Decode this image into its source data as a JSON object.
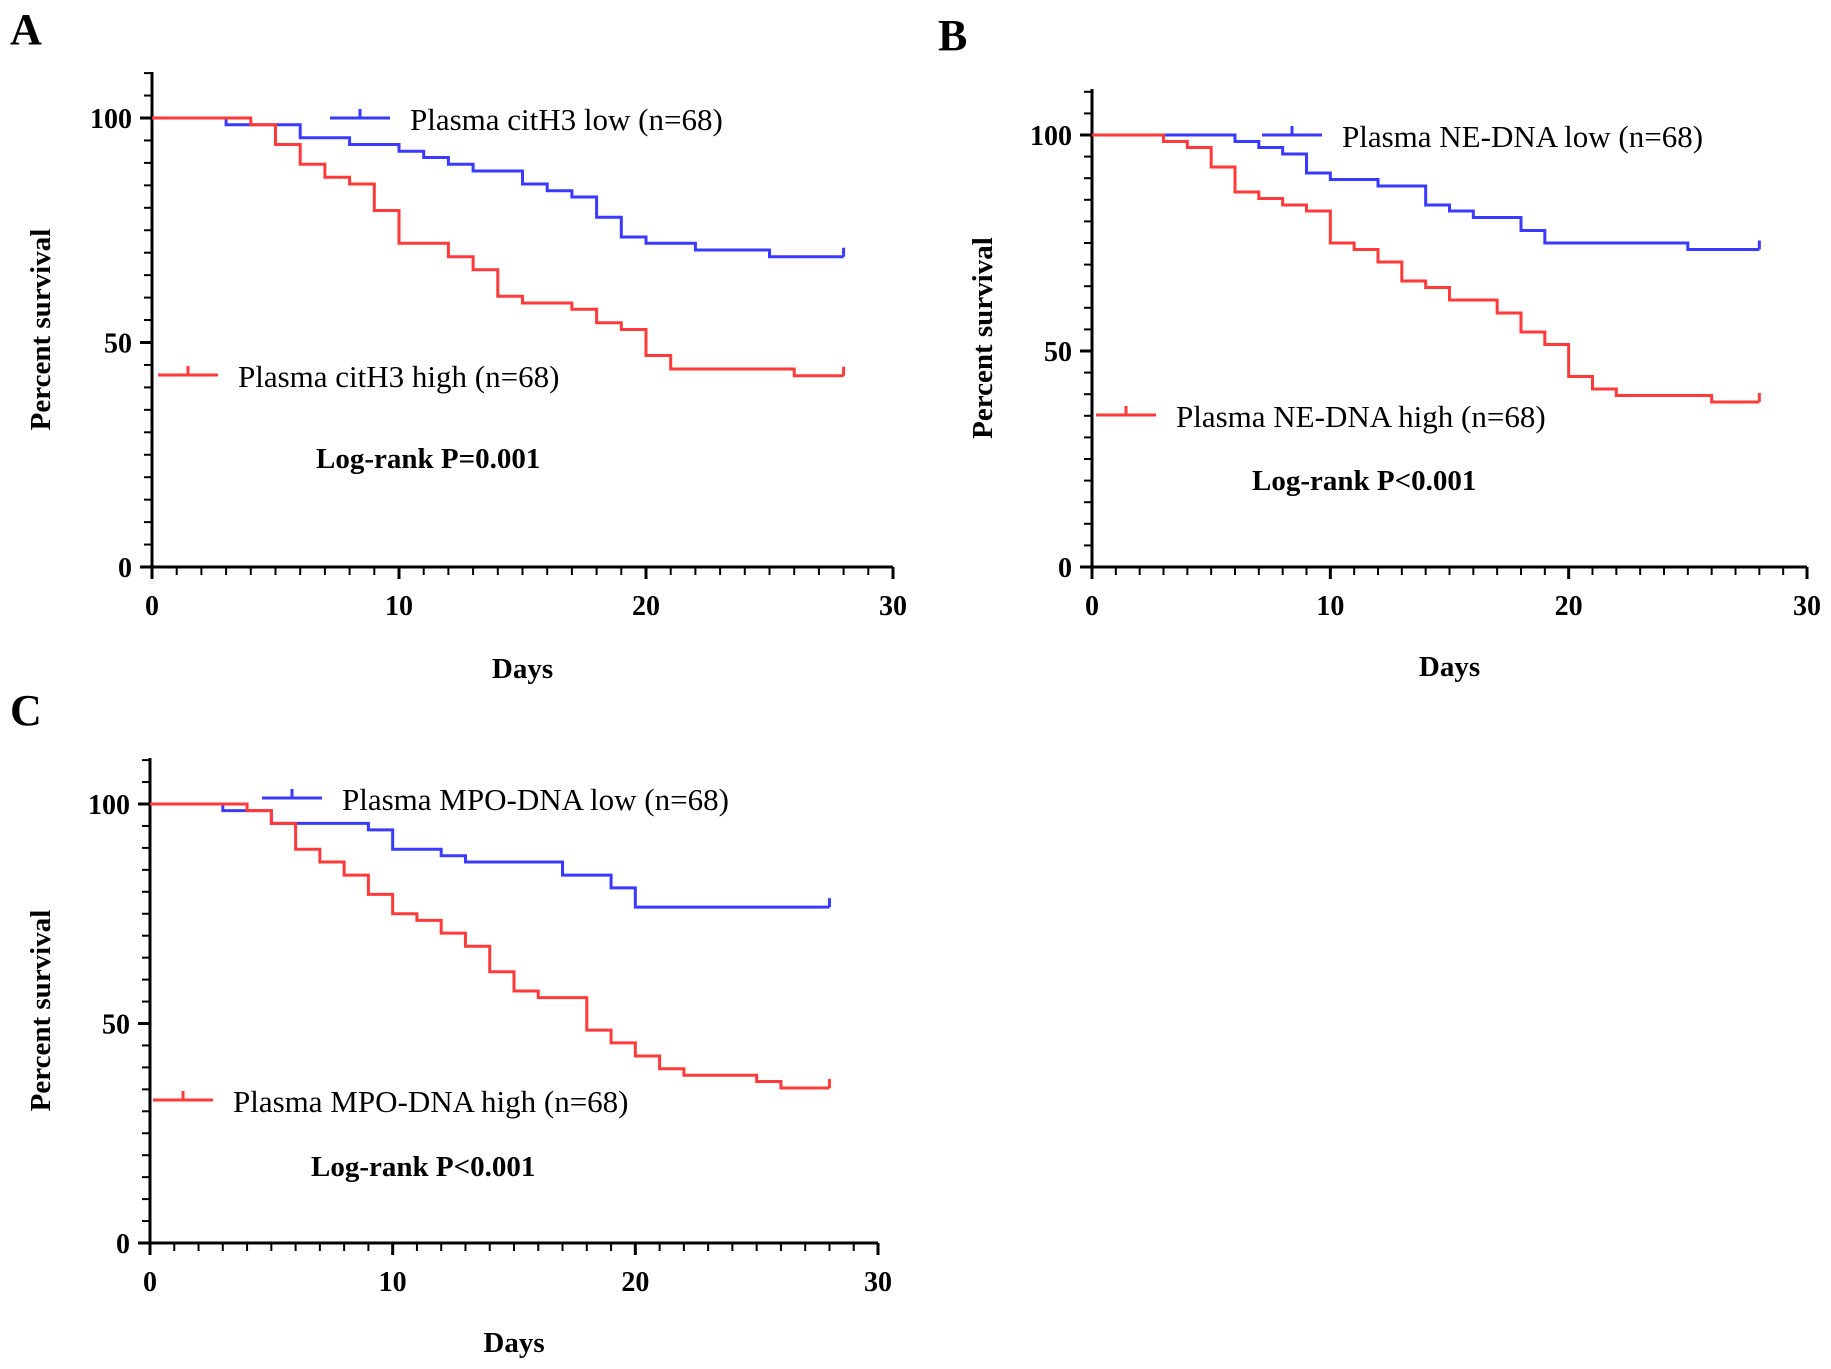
{
  "figure": {
    "panel_labels": [
      "A",
      "B",
      "C"
    ]
  },
  "colors": {
    "low": "#3a3aff",
    "high": "#ff3a3a",
    "axis": "#000000"
  },
  "chart_data": [
    {
      "type": "line",
      "subtype": "kaplan-meier",
      "panel": "A",
      "xlabel": "Days",
      "ylabel": "Percent survival",
      "xlim": [
        0,
        30
      ],
      "ylim": [
        0,
        110
      ],
      "xticks": [
        0,
        10,
        20,
        30
      ],
      "yticks": [
        0,
        50,
        100
      ],
      "annotation": "Log-rank P=0.001",
      "series": [
        {
          "name": "Plasma citH3 low (n=68)",
          "color": "#3a3aff",
          "x": [
            0,
            3,
            6,
            8,
            10,
            11,
            12,
            13,
            15,
            16,
            17,
            18,
            19,
            20,
            22,
            25,
            28
          ],
          "y": [
            100,
            98.5,
            95.6,
            94.1,
            92.6,
            91.2,
            89.7,
            88.2,
            85.3,
            83.8,
            82.4,
            77.9,
            73.5,
            72.1,
            70.6,
            69.1,
            69.1
          ]
        },
        {
          "name": "Plasma citH3 high (n=68)",
          "color": "#ff3a3a",
          "x": [
            0,
            4,
            5,
            6,
            7,
            8,
            9,
            10,
            12,
            13,
            14,
            15,
            17,
            18,
            19,
            20,
            21,
            26,
            28
          ],
          "y": [
            100,
            98.5,
            94.1,
            89.7,
            86.8,
            85.3,
            79.4,
            72.1,
            69.1,
            66.2,
            60.3,
            58.8,
            57.4,
            54.4,
            52.9,
            47.1,
            44.1,
            42.6,
            42.6
          ]
        }
      ]
    },
    {
      "type": "line",
      "subtype": "kaplan-meier",
      "panel": "B",
      "xlabel": "Days",
      "ylabel": "Percent survival",
      "xlim": [
        0,
        30
      ],
      "ylim": [
        0,
        110
      ],
      "xticks": [
        0,
        10,
        20,
        30
      ],
      "yticks": [
        0,
        50,
        100
      ],
      "annotation": "Log-rank P<0.001",
      "series": [
        {
          "name": "Plasma NE-DNA low (n=68)",
          "color": "#3a3aff",
          "x": [
            0,
            6,
            7,
            8,
            9,
            10,
            12,
            14,
            15,
            16,
            18,
            19,
            25,
            28
          ],
          "y": [
            100,
            98.5,
            97.1,
            95.6,
            91.2,
            89.7,
            88.2,
            83.8,
            82.4,
            80.9,
            77.9,
            75,
            73.5,
            73.5
          ]
        },
        {
          "name": "Plasma NE-DNA high (n=68)",
          "color": "#ff3a3a",
          "x": [
            0,
            3,
            4,
            5,
            6,
            7,
            8,
            9,
            10,
            11,
            12,
            13,
            14,
            15,
            17,
            18,
            19,
            20,
            21,
            22,
            26,
            28
          ],
          "y": [
            100,
            98.5,
            97.1,
            92.6,
            86.8,
            85.3,
            83.8,
            82.4,
            75,
            73.5,
            70.6,
            66.2,
            64.7,
            61.8,
            58.8,
            54.4,
            51.5,
            44.1,
            41.2,
            39.7,
            38.2,
            38.2
          ]
        }
      ]
    },
    {
      "type": "line",
      "subtype": "kaplan-meier",
      "panel": "C",
      "xlabel": "Days",
      "ylabel": "Percent survival",
      "xlim": [
        0,
        30
      ],
      "ylim": [
        0,
        110
      ],
      "xticks": [
        0,
        10,
        20,
        30
      ],
      "yticks": [
        0,
        50,
        100
      ],
      "annotation": "Log-rank P<0.001",
      "series": [
        {
          "name": "Plasma MPO-DNA low (n=68)",
          "color": "#3a3aff",
          "x": [
            0,
            3,
            5,
            9,
            10,
            12,
            13,
            17,
            19,
            20,
            28
          ],
          "y": [
            100,
            98.5,
            95.6,
            94.1,
            89.7,
            88.2,
            86.8,
            83.8,
            80.9,
            76.5,
            76.5
          ]
        },
        {
          "name": "Plasma MPO-DNA high (n=68)",
          "color": "#ff3a3a",
          "x": [
            0,
            4,
            5,
            6,
            7,
            8,
            9,
            10,
            11,
            12,
            13,
            14,
            15,
            16,
            18,
            19,
            20,
            21,
            22,
            25,
            26,
            28
          ],
          "y": [
            100,
            98.5,
            95.6,
            89.7,
            86.8,
            83.8,
            79.4,
            75,
            73.5,
            70.6,
            67.6,
            61.8,
            57.4,
            55.9,
            48.5,
            45.6,
            42.6,
            39.7,
            38.2,
            36.8,
            35.3,
            35.3
          ]
        }
      ]
    }
  ]
}
